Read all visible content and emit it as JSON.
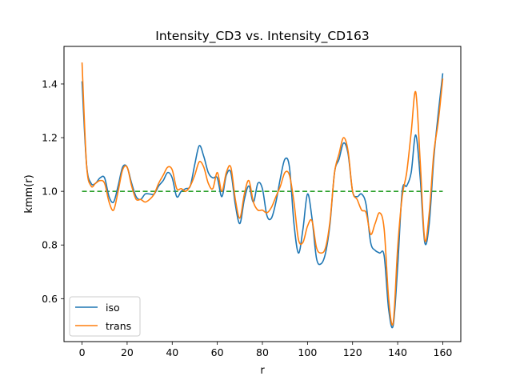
{
  "chart_data": {
    "type": "line",
    "title": "Intensity_CD3 vs. Intensity_CD163",
    "xlabel": "r",
    "ylabel": "kmm(r)",
    "xlim": [
      -8,
      168
    ],
    "ylim": [
      0.44,
      1.54
    ],
    "xticks": [
      0,
      20,
      40,
      60,
      80,
      100,
      120,
      140,
      160
    ],
    "yticks": [
      0.6,
      0.8,
      1.0,
      1.2,
      1.4
    ],
    "ytick_labels": [
      "0.6",
      "0.8",
      "1.0",
      "1.2",
      "1.4"
    ],
    "grid": false,
    "legend_position": "lower-left",
    "series": [
      {
        "name": "iso",
        "color": "#1f77b4",
        "style": "solid",
        "x": [
          0,
          2,
          4,
          6,
          8,
          10,
          12,
          14,
          16,
          18,
          20,
          22,
          24,
          26,
          28,
          30,
          32,
          34,
          36,
          38,
          40,
          42,
          44,
          46,
          48,
          50,
          52,
          54,
          56,
          58,
          60,
          62,
          64,
          66,
          68,
          70,
          72,
          74,
          76,
          78,
          80,
          82,
          84,
          86,
          88,
          90,
          92,
          94,
          96,
          98,
          100,
          102,
          104,
          106,
          108,
          110,
          112,
          114,
          116,
          118,
          120,
          122,
          124,
          126,
          128,
          130,
          132,
          134,
          136,
          138,
          140,
          142,
          144,
          146,
          148,
          150,
          152,
          154,
          156,
          158,
          160
        ],
        "y": [
          1.41,
          1.1,
          1.03,
          1.03,
          1.05,
          1.05,
          0.98,
          0.96,
          1.02,
          1.09,
          1.09,
          1.03,
          0.98,
          0.97,
          0.99,
          0.99,
          0.99,
          1.02,
          1.04,
          1.07,
          1.05,
          0.98,
          1.0,
          1.01,
          1.02,
          1.1,
          1.17,
          1.13,
          1.07,
          1.05,
          1.05,
          0.98,
          1.06,
          1.07,
          0.95,
          0.88,
          0.97,
          1.02,
          0.96,
          1.03,
          1.01,
          0.91,
          0.9,
          0.96,
          1.05,
          1.12,
          1.09,
          0.88,
          0.77,
          0.86,
          0.99,
          0.9,
          0.75,
          0.73,
          0.77,
          0.88,
          1.07,
          1.12,
          1.18,
          1.14,
          1.0,
          0.98,
          0.99,
          0.95,
          0.81,
          0.78,
          0.77,
          0.76,
          0.56,
          0.5,
          0.72,
          1.0,
          1.02,
          1.07,
          1.21,
          1.05,
          0.81,
          0.88,
          1.12,
          1.29,
          1.44
        ]
      },
      {
        "name": "trans",
        "color": "#ff7f0e",
        "style": "solid",
        "x": [
          0,
          2,
          4,
          6,
          8,
          10,
          12,
          14,
          16,
          18,
          20,
          22,
          24,
          26,
          28,
          30,
          32,
          34,
          36,
          38,
          40,
          42,
          44,
          46,
          48,
          50,
          52,
          54,
          56,
          58,
          60,
          62,
          64,
          66,
          68,
          70,
          72,
          74,
          76,
          78,
          80,
          82,
          84,
          86,
          88,
          90,
          92,
          94,
          96,
          98,
          100,
          102,
          104,
          106,
          108,
          110,
          112,
          114,
          116,
          118,
          120,
          122,
          124,
          126,
          128,
          130,
          132,
          134,
          136,
          138,
          140,
          142,
          144,
          146,
          148,
          150,
          152,
          154,
          156,
          158,
          160
        ],
        "y": [
          1.48,
          1.1,
          1.02,
          1.03,
          1.04,
          1.03,
          0.96,
          0.93,
          1.0,
          1.08,
          1.09,
          1.02,
          0.97,
          0.97,
          0.96,
          0.97,
          0.99,
          1.03,
          1.06,
          1.09,
          1.08,
          1.01,
          1.01,
          1.0,
          1.02,
          1.06,
          1.11,
          1.09,
          1.03,
          1.01,
          1.07,
          1.0,
          1.07,
          1.09,
          0.97,
          0.9,
          0.99,
          1.04,
          0.96,
          0.93,
          0.93,
          0.92,
          0.94,
          0.98,
          1.02,
          1.07,
          1.06,
          0.96,
          0.82,
          0.81,
          0.87,
          0.89,
          0.79,
          0.77,
          0.79,
          0.89,
          1.07,
          1.14,
          1.2,
          1.15,
          1.0,
          0.97,
          0.93,
          0.92,
          0.84,
          0.88,
          0.92,
          0.86,
          0.6,
          0.51,
          0.79,
          0.98,
          1.07,
          1.22,
          1.37,
          1.11,
          0.82,
          0.92,
          1.14,
          1.26,
          1.42
        ]
      },
      {
        "name": "",
        "color": "#2ca02c",
        "style": "dashed",
        "x": [
          0,
          160
        ],
        "y": [
          1.0,
          1.0
        ]
      }
    ]
  }
}
